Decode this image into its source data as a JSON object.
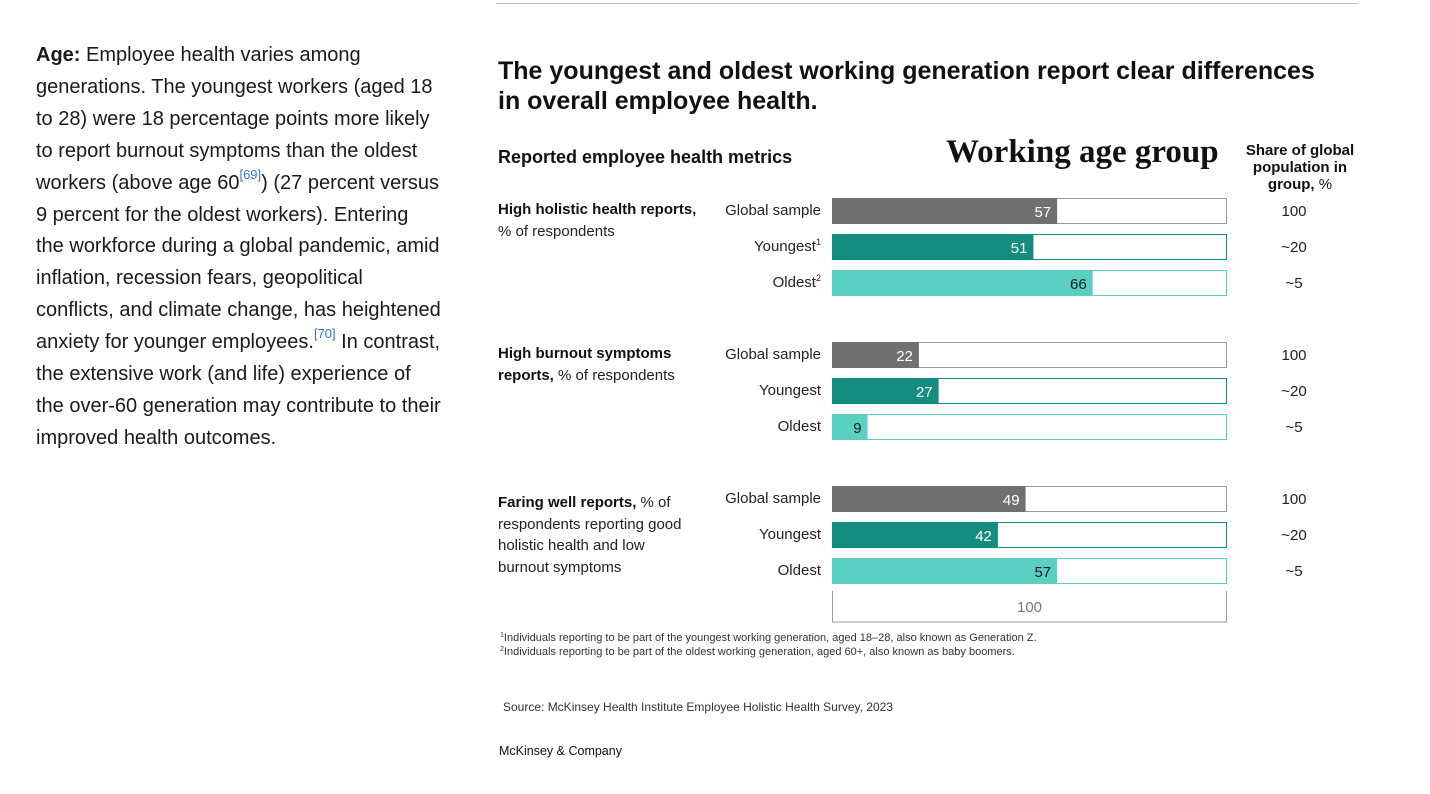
{
  "article": {
    "lead": "Age:",
    "part1": " Employee health varies among generations. The youngest workers (aged 18 to 28) were 18 percentage points more likely to report burnout symptoms than the oldest workers (above age 60",
    "ref1": "[69]",
    "part2": ") (27 percent versus 9 percent for the oldest workers). Entering the workforce during a global pandemic, amid inflation, recession fears, geopolitical conflicts, and climate change, has heightened anxiety for younger employees.",
    "ref2": "[70]",
    "part3": " In contrast, the extensive work (and life) experience of the over-60 generation may contribute to their improved health outcomes."
  },
  "chart": {
    "title": "The youngest and oldest working generation report clear differences in overall employee health.",
    "metrics_header": "Reported employee health metrics",
    "age_header": "Working age group",
    "share_header_bold": "Share of global population in group,",
    "share_header_unit": " %",
    "metrics": [
      {
        "label_bold": "High holistic health reports,",
        "label_rest": " % of respondents"
      },
      {
        "label_bold": "High burnout symptoms reports,",
        "label_rest": " % of respondents"
      },
      {
        "label_bold": "Faring well reports,",
        "label_rest": " % of respondents reporting good holistic health and low burnout symptoms"
      }
    ],
    "footnote1": "Individuals reporting to be part of the youngest working generation, aged 18–28, also known as Generation Z.",
    "footnote1_mark": "1",
    "footnote2": "Individuals reporting to be part of the oldest working generation, aged 60+, also known as baby boomers.",
    "footnote2_mark": "2",
    "source": "Source: McKinsey Health Institute Employee Holistic Health Survey, 2023",
    "brand": "McKinsey & Company"
  },
  "chart_data": {
    "type": "bar",
    "orientation": "horizontal",
    "xlim": [
      0,
      100
    ],
    "scale_label": "100",
    "colors": {
      "Global sample": "#707070",
      "Youngest": "#148c80",
      "Oldest": "#5ad0c3"
    },
    "groups": [
      {
        "metric": "High holistic health reports",
        "rows": [
          {
            "category": "Global sample",
            "value": 57,
            "share": "100"
          },
          {
            "category": "Youngest",
            "value": 51,
            "share": "~20",
            "mark": "1"
          },
          {
            "category": "Oldest",
            "value": 66,
            "share": "~5",
            "mark": "2"
          }
        ]
      },
      {
        "metric": "High burnout symptoms reports",
        "rows": [
          {
            "category": "Global sample",
            "value": 22,
            "share": "100"
          },
          {
            "category": "Youngest",
            "value": 27,
            "share": "~20"
          },
          {
            "category": "Oldest",
            "value": 9,
            "share": "~5"
          }
        ]
      },
      {
        "metric": "Faring well reports",
        "rows": [
          {
            "category": "Global sample",
            "value": 49,
            "share": "100"
          },
          {
            "category": "Youngest",
            "value": 42,
            "share": "~20"
          },
          {
            "category": "Oldest",
            "value": 57,
            "share": "~5"
          }
        ]
      }
    ]
  }
}
